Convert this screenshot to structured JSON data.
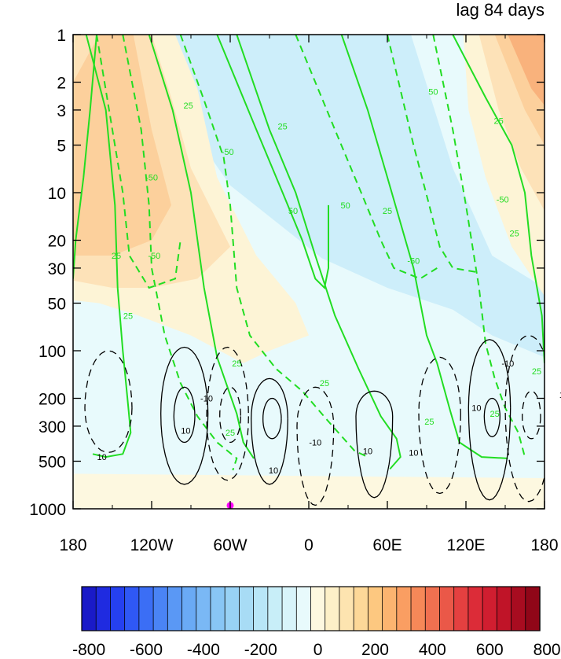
{
  "chart_data": {
    "type": "heatmap",
    "title": "lag 84 days",
    "x_axis": {
      "ticks": [
        180,
        240,
        300,
        360,
        420,
        480,
        540
      ],
      "tick_labels": [
        "180",
        "120W",
        "60W",
        "0",
        "60E",
        "120E",
        "180"
      ],
      "range": [
        180,
        540
      ]
    },
    "y_axis": {
      "scale": "log",
      "reversed": true,
      "ticks": [
        1,
        2,
        3,
        5,
        10,
        20,
        30,
        50,
        100,
        200,
        300,
        500,
        1000
      ],
      "tick_labels": [
        "1",
        "2",
        "3",
        "5",
        "10",
        "20",
        "30",
        "50",
        "100",
        "200",
        "300",
        "500",
        "1000"
      ],
      "range": [
        1,
        1000
      ]
    },
    "colorbar": {
      "levels": [
        -800,
        -750,
        -700,
        -650,
        -600,
        -550,
        -500,
        -450,
        -400,
        -350,
        -300,
        -250,
        -200,
        -150,
        -100,
        -50,
        0,
        50,
        100,
        150,
        200,
        250,
        300,
        350,
        400,
        450,
        500,
        550,
        600,
        650,
        700,
        750,
        800
      ],
      "tick_labels": [
        "-800",
        "-600",
        "-400",
        "-200",
        "0",
        "200",
        "400",
        "600",
        "800"
      ],
      "colors": [
        "#1a1ac8",
        "#1f2be0",
        "#2540f0",
        "#2f58f5",
        "#3b6ef5",
        "#4a84f5",
        "#5a98f5",
        "#6aaaf5",
        "#7ab8f5",
        "#88c6f5",
        "#98d2f5",
        "#a8dcf5",
        "#b8e6f7",
        "#c8eef8",
        "#d8f4fa",
        "#e8fafc",
        "#fdf8e0",
        "#fdf0c8",
        "#fde4b0",
        "#fdd898",
        "#fdc880",
        "#fcb470",
        "#fa9e62",
        "#f68858",
        "#f07050",
        "#ea5848",
        "#e44040",
        "#dc2c38",
        "#d01e30",
        "#c01428",
        "#a80c20",
        "#900618"
      ]
    },
    "marker": {
      "lon": 300,
      "p": 850,
      "color": "#ff00ff"
    },
    "shaded_field": [
      {
        "level": -400,
        "polygon": [
          [
            275,
            1
          ],
          [
            330,
            1
          ],
          [
            336,
            2
          ],
          [
            342,
            3
          ],
          [
            340,
            1.8
          ],
          [
            320,
            1.2
          ]
        ]
      },
      {
        "level": -300,
        "polygon": [
          [
            262,
            1
          ],
          [
            360,
            1
          ],
          [
            372,
            3
          ],
          [
            385,
            8
          ],
          [
            395,
            13
          ],
          [
            380,
            10
          ],
          [
            345,
            4
          ],
          [
            300,
            2.2
          ]
        ]
      },
      {
        "level": -200,
        "polygon": [
          [
            230,
            1
          ],
          [
            395,
            1
          ],
          [
            420,
            6
          ],
          [
            438,
            15
          ],
          [
            458,
            26
          ],
          [
            480,
            34
          ],
          [
            440,
            26
          ],
          [
            400,
            15
          ],
          [
            350,
            7
          ],
          [
            290,
            2.6
          ],
          [
            252,
            1.6
          ]
        ]
      },
      {
        "level": -100,
        "polygon": [
          [
            250,
            1
          ],
          [
            438,
            1
          ],
          [
            470,
            7
          ],
          [
            500,
            25
          ],
          [
            540,
            40
          ],
          [
            540,
            110
          ],
          [
            500,
            80
          ],
          [
            470,
            55
          ],
          [
            420,
            40
          ],
          [
            370,
            26
          ],
          [
            300,
            9
          ],
          [
            260,
            3
          ]
        ]
      },
      {
        "level": 100,
        "polygon": [
          [
            180,
            1
          ],
          [
            258,
            1
          ],
          [
            275,
            2.2
          ],
          [
            290,
            8
          ],
          [
            320,
            25
          ],
          [
            350,
            50
          ],
          [
            360,
            80
          ],
          [
            330,
            100
          ],
          [
            310,
            120
          ],
          [
            270,
            80
          ],
          [
            230,
            60
          ],
          [
            200,
            50
          ],
          [
            180,
            48
          ]
        ]
      },
      {
        "level": 200,
        "polygon": [
          [
            180,
            1
          ],
          [
            240,
            1
          ],
          [
            255,
            2.5
          ],
          [
            270,
            7
          ],
          [
            300,
            22
          ],
          [
            275,
            35
          ],
          [
            240,
            40
          ],
          [
            210,
            40
          ],
          [
            180,
            36
          ]
        ]
      },
      {
        "level": 300,
        "polygon": [
          [
            180,
            2
          ],
          [
            200,
            1
          ],
          [
            226,
            1
          ],
          [
            240,
            4
          ],
          [
            255,
            12
          ],
          [
            240,
            20
          ],
          [
            210,
            25
          ],
          [
            180,
            25
          ]
        ]
      },
      {
        "level": 100,
        "polygon": [
          [
            478,
            1
          ],
          [
            540,
            1
          ],
          [
            540,
            45
          ],
          [
            515,
            22
          ],
          [
            495,
            8
          ],
          [
            482,
            3
          ]
        ]
      },
      {
        "level": 200,
        "polygon": [
          [
            490,
            1
          ],
          [
            540,
            1
          ],
          [
            540,
            13
          ],
          [
            522,
            7
          ],
          [
            505,
            3
          ]
        ]
      },
      {
        "level": 300,
        "polygon": [
          [
            502,
            1
          ],
          [
            540,
            1
          ],
          [
            540,
            5
          ],
          [
            525,
            3
          ]
        ]
      },
      {
        "level": 400,
        "polygon": [
          [
            512,
            1
          ],
          [
            540,
            1
          ],
          [
            540,
            2.8
          ],
          [
            530,
            2.2
          ]
        ]
      }
    ]
  }
}
